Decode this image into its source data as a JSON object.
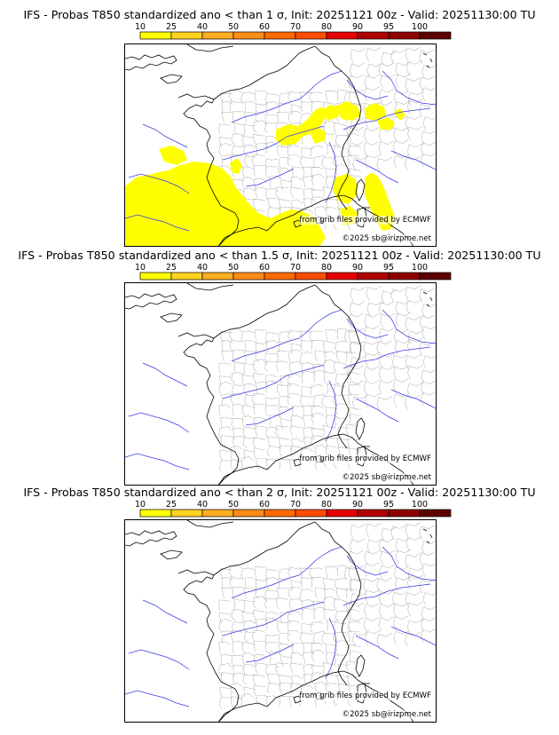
{
  "colors": {
    "scale": [
      "#ffff00",
      "#ffd21f",
      "#ffad21",
      "#ff8c1a",
      "#ff6a00",
      "#ff4d00",
      "#e60000",
      "#b00000",
      "#8c0000",
      "#5c0000"
    ],
    "border": "#000000",
    "rivers": "#3a3ae6",
    "regions": "#b4b4b4",
    "highlight": "#ffff00"
  },
  "colorbar": {
    "ticks": [
      "10",
      "25",
      "40",
      "50",
      "60",
      "70",
      "80",
      "90",
      "95",
      "100"
    ]
  },
  "panels": [
    {
      "title": "IFS - Probas T850  standardized ano < than 1 σ, Init: 20251121 00z - Valid: 20251130:00 TU",
      "credit_source": "from grib files provided by ECMWF",
      "credit_copyright": "©2025 sb@irizpme.net",
      "probability_class": "10-25"
    },
    {
      "title": "IFS - Probas T850  standardized ano < than 1.5 σ, Init: 20251121 00z - Valid: 20251130:00 TU",
      "credit_source": "from grib files provided by ECMWF",
      "credit_copyright": "©2025 sb@irizpme.net",
      "probability_class": "none"
    },
    {
      "title": "IFS - Probas T850  standardized ano < than 2 σ, Init: 20251121 00z - Valid: 20251130:00 TU",
      "credit_source": "from grib files provided by ECMWF",
      "credit_copyright": "©2025 sb@irizpme.net",
      "probability_class": "none"
    }
  ]
}
